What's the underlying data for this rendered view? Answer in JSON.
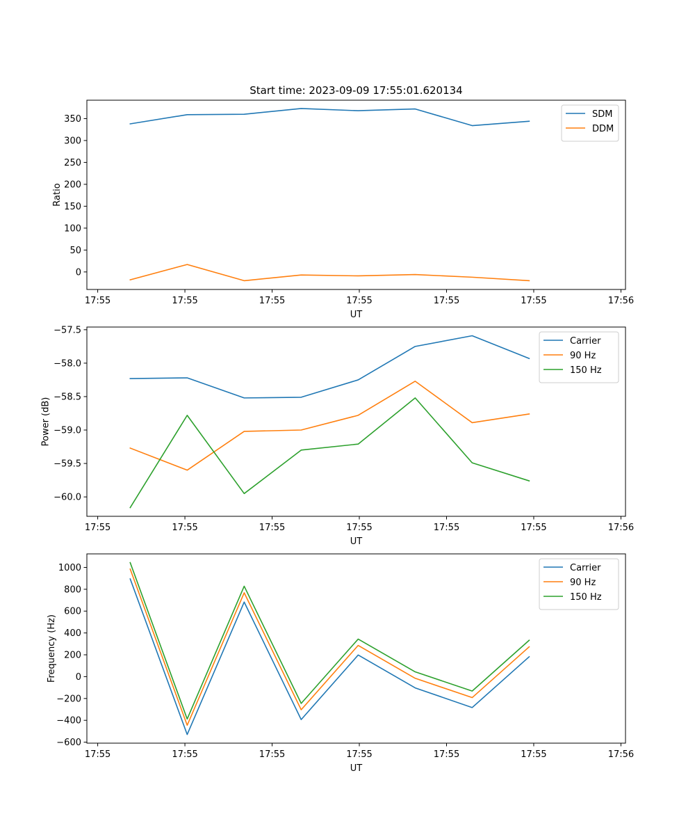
{
  "figure_title": "Start time: 2023-09-09 17:55:01.620134",
  "colors": {
    "blue": "#1f77b4",
    "orange": "#ff7f0e",
    "green": "#2ca02c"
  },
  "chart_data": [
    {
      "type": "line",
      "title": "Start time: 2023-09-09 17:55:01.620134",
      "xlabel": "UT",
      "ylabel": "Ratio",
      "x": [
        0,
        1,
        2,
        3,
        4,
        5,
        6,
        7
      ],
      "x_tick_labels": [
        "17:55",
        "17:55",
        "17:55",
        "17:55",
        "17:55",
        "17:55",
        "17:56"
      ],
      "y_ticks": [
        0,
        50,
        100,
        150,
        200,
        250,
        300,
        350
      ],
      "y_tick_labels": [
        "0",
        "50",
        "100",
        "150",
        "200",
        "250",
        "300",
        "350"
      ],
      "ylim": [
        -40,
        392
      ],
      "legend_position": "top-right",
      "series": [
        {
          "name": "SDM",
          "color": "#1f77b4",
          "values": [
            338,
            359,
            360,
            373,
            368,
            372,
            334,
            344
          ]
        },
        {
          "name": "DDM",
          "color": "#ff7f0e",
          "values": [
            -18,
            17,
            -20,
            -7,
            -9,
            -6,
            -12,
            -20
          ]
        }
      ]
    },
    {
      "type": "line",
      "title": "",
      "xlabel": "UT",
      "ylabel": "Power (dB)",
      "x": [
        0,
        1,
        2,
        3,
        4,
        5,
        6,
        7
      ],
      "x_tick_labels": [
        "17:55",
        "17:55",
        "17:55",
        "17:55",
        "17:55",
        "17:55",
        "17:56"
      ],
      "y_ticks": [
        -60.0,
        -59.5,
        -59.0,
        -58.5,
        -58.0,
        -57.5
      ],
      "y_tick_labels": [
        "−60.0",
        "−59.5",
        "−59.0",
        "−58.5",
        "−58.0",
        "−57.5"
      ],
      "ylim": [
        -60.29,
        -57.46
      ],
      "legend_position": "top-right",
      "series": [
        {
          "name": "Carrier",
          "color": "#1f77b4",
          "values": [
            -58.23,
            -58.22,
            -58.52,
            -58.51,
            -58.25,
            -57.75,
            -57.59,
            -57.93
          ]
        },
        {
          "name": "90 Hz",
          "color": "#ff7f0e",
          "values": [
            -59.27,
            -59.6,
            -59.02,
            -59.0,
            -58.78,
            -58.27,
            -58.89,
            -58.76
          ]
        },
        {
          "name": "150 Hz",
          "color": "#2ca02c",
          "values": [
            -60.16,
            -58.78,
            -59.95,
            -59.3,
            -59.21,
            -58.52,
            -59.49,
            -59.76
          ]
        }
      ]
    },
    {
      "type": "line",
      "title": "",
      "xlabel": "UT",
      "ylabel": "Frequency (Hz)",
      "x": [
        0,
        1,
        2,
        3,
        4,
        5,
        6,
        7
      ],
      "x_tick_labels": [
        "17:55",
        "17:55",
        "17:55",
        "17:55",
        "17:55",
        "17:55",
        "17:56"
      ],
      "y_ticks": [
        -600,
        -400,
        -200,
        0,
        200,
        400,
        600,
        800,
        1000
      ],
      "y_tick_labels": [
        "−600",
        "−400",
        "−200",
        "0",
        "200",
        "400",
        "600",
        "800",
        "1000"
      ],
      "ylim": [
        -609,
        1124
      ],
      "legend_position": "top-right",
      "series": [
        {
          "name": "Carrier",
          "color": "#1f77b4",
          "values": [
            895,
            -530,
            683,
            -393,
            198,
            -103,
            -283,
            182
          ]
        },
        {
          "name": "90 Hz",
          "color": "#ff7f0e",
          "values": [
            985,
            -445,
            768,
            -303,
            286,
            -15,
            -192,
            273
          ]
        },
        {
          "name": "150 Hz",
          "color": "#2ca02c",
          "values": [
            1044,
            -388,
            828,
            -245,
            344,
            44,
            -132,
            333
          ]
        }
      ]
    }
  ]
}
